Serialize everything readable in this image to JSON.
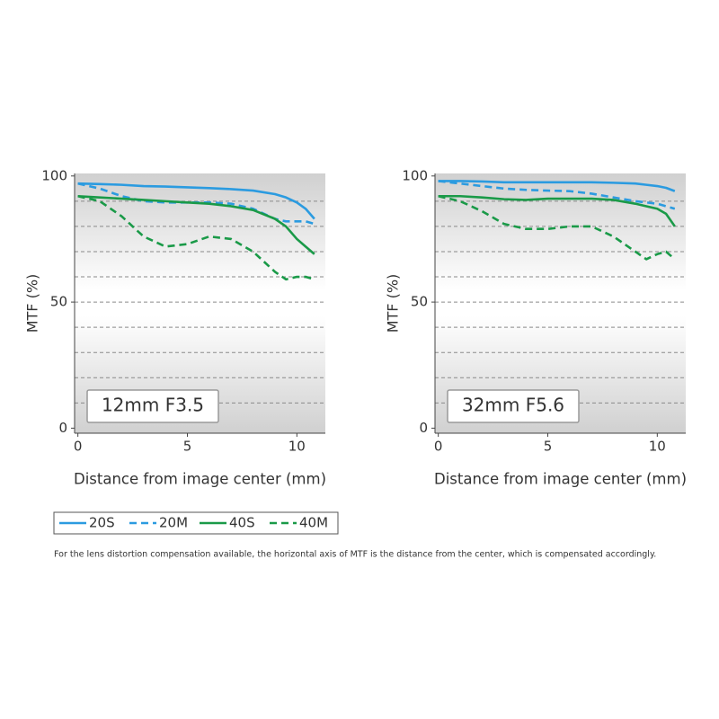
{
  "chart_data": [
    {
      "type": "line",
      "annotation": "12mm F3.5",
      "ylabel": "MTF (%)",
      "xlabel": "Distance from image center (mm)",
      "x": [
        0,
        1,
        2,
        3,
        4,
        5,
        6,
        7,
        8,
        9,
        9.5,
        10,
        10.4,
        10.8
      ],
      "xlim": [
        -0.15,
        11.3
      ],
      "xticks": [
        0,
        5,
        10
      ],
      "ylim": [
        -2,
        101
      ],
      "yticks": [
        0,
        50,
        100
      ],
      "grid_yticks": [
        10,
        20,
        30,
        40,
        50,
        60,
        70,
        80,
        90
      ],
      "series": [
        {
          "name": "20S",
          "color": "#2b9be0",
          "dash": false,
          "values": [
            97,
            96.8,
            96.5,
            96,
            95.8,
            95.5,
            95.2,
            94.8,
            94.2,
            92.8,
            91.5,
            89.5,
            87,
            83
          ]
        },
        {
          "name": "20M",
          "color": "#2b9be0",
          "dash": true,
          "values": [
            97,
            95,
            92,
            90,
            89.5,
            89.5,
            89.5,
            89,
            87,
            83,
            82,
            82,
            82,
            81
          ]
        },
        {
          "name": "40S",
          "color": "#1a9a48",
          "dash": false,
          "values": [
            92,
            91.5,
            91,
            90.5,
            90,
            89.5,
            89,
            88,
            86.5,
            83,
            80,
            75,
            72,
            69
          ]
        },
        {
          "name": "40M",
          "color": "#1a9a48",
          "dash": true,
          "values": [
            92,
            90,
            84,
            76,
            72,
            73,
            76,
            75,
            70,
            62,
            59,
            60,
            60,
            59
          ]
        }
      ]
    },
    {
      "type": "line",
      "annotation": "32mm F5.6",
      "ylabel": "MTF (%)",
      "xlabel": "Distance from image center (mm)",
      "x": [
        0,
        1,
        2,
        3,
        4,
        5,
        6,
        7,
        8,
        9,
        9.5,
        10,
        10.4,
        10.8
      ],
      "xlim": [
        -0.15,
        11.3
      ],
      "xticks": [
        0,
        5,
        10
      ],
      "ylim": [
        -2,
        101
      ],
      "yticks": [
        0,
        50,
        100
      ],
      "grid_yticks": [
        10,
        20,
        30,
        40,
        50,
        60,
        70,
        80,
        90
      ],
      "series": [
        {
          "color": "#2b9be0",
          "dash": false,
          "values": [
            98,
            98,
            97.8,
            97.5,
            97.5,
            97.5,
            97.5,
            97.5,
            97.3,
            97,
            96.5,
            96,
            95.3,
            94
          ]
        },
        {
          "color": "#2b9be0",
          "dash": true,
          "values": [
            98,
            97,
            96,
            95,
            94.5,
            94.2,
            94,
            93,
            91.5,
            90,
            89.5,
            89,
            88,
            87
          ]
        },
        {
          "color": "#1a9a48",
          "dash": false,
          "values": [
            92,
            92,
            91.5,
            90.8,
            90.5,
            91,
            91,
            91,
            90.5,
            89,
            88,
            87,
            85,
            80
          ]
        },
        {
          "color": "#1a9a48",
          "dash": true,
          "values": [
            92,
            90,
            86,
            81,
            79,
            79,
            80,
            80,
            76,
            70,
            67,
            69,
            70,
            67
          ]
        }
      ]
    }
  ],
  "footnote": "For the lens distortion compensation available, the horizontal axis of MTF is the distance from the center, which is compensated accordingly."
}
